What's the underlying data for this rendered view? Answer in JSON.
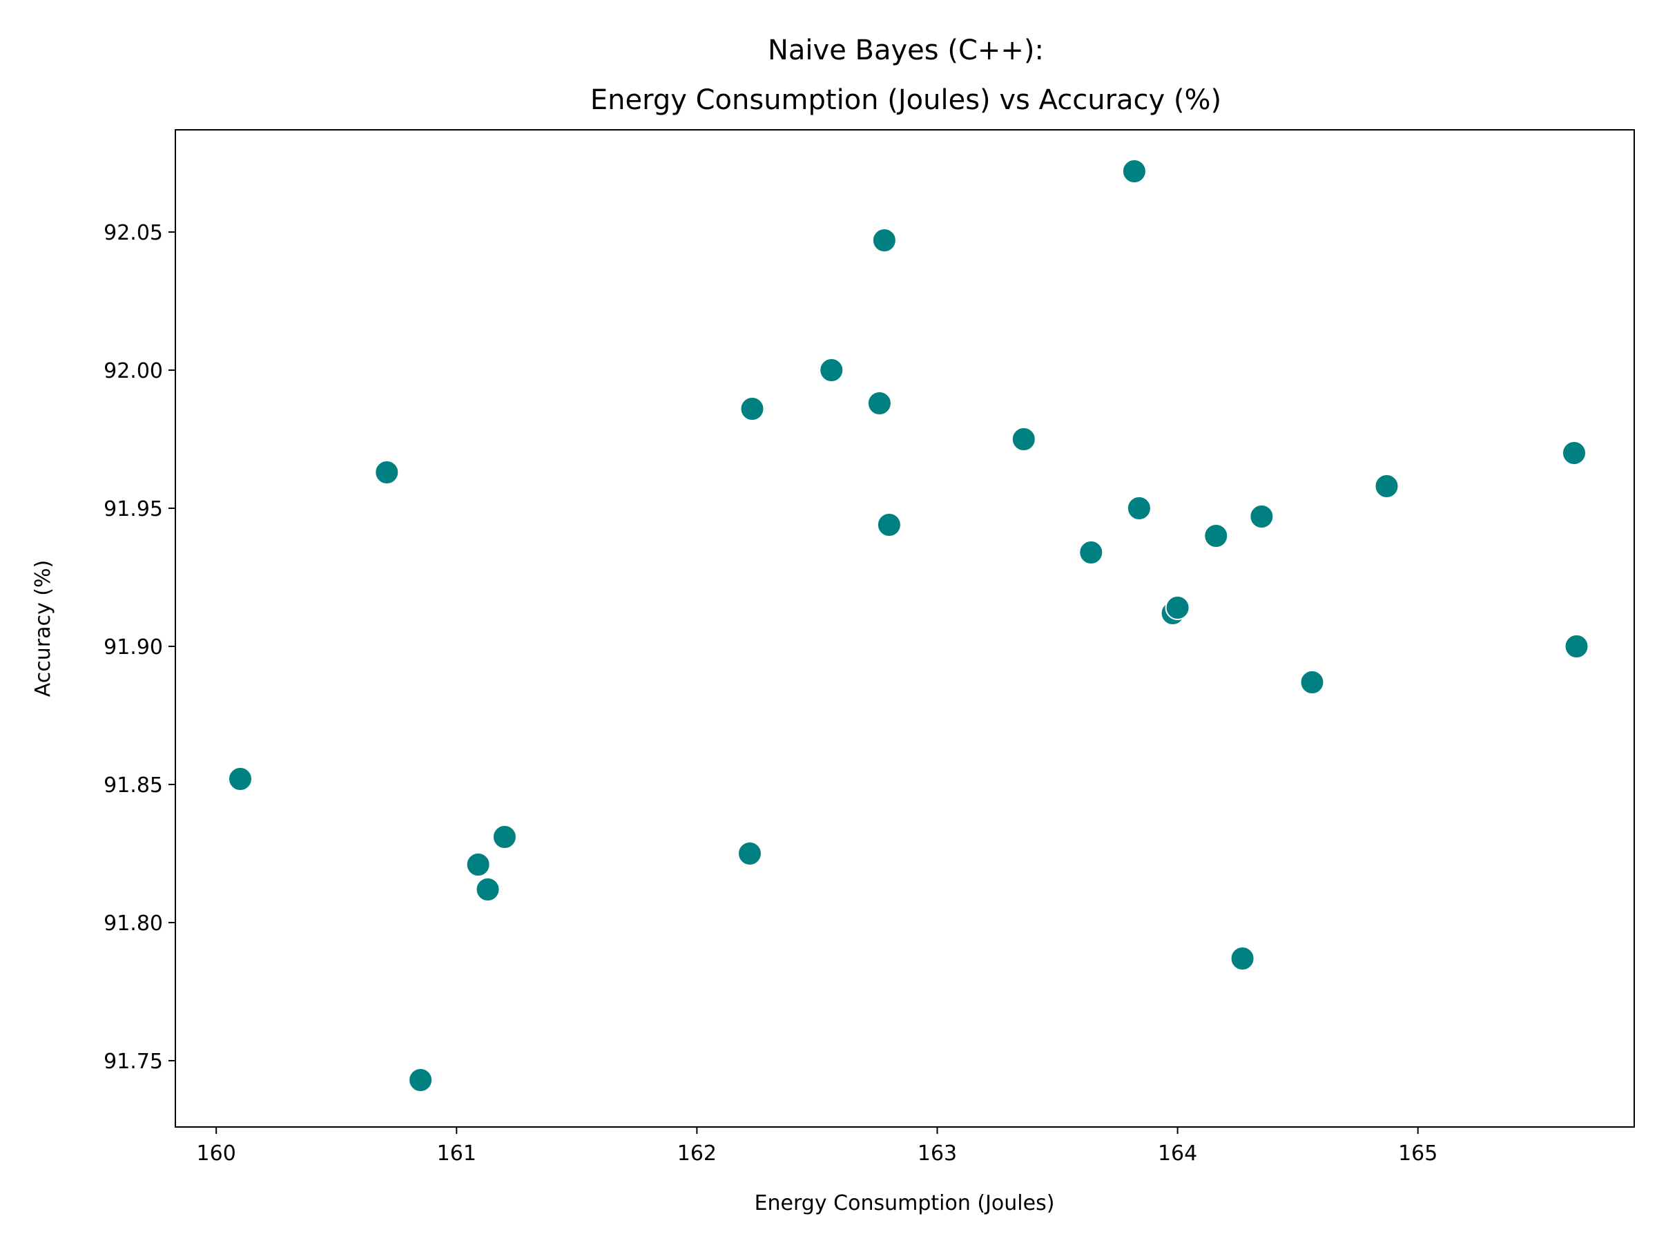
{
  "chart_data": {
    "type": "scatter",
    "title": [
      "Naive Bayes (C++):",
      "Energy Consumption (Joules) vs Accuracy (%)"
    ],
    "xlabel": "Energy Consumption (Joules)",
    "ylabel": "Accuracy (%)",
    "xlim": [
      159.83,
      165.9
    ],
    "ylim": [
      91.726,
      92.087
    ],
    "xticks": [
      160,
      161,
      162,
      163,
      164,
      165
    ],
    "xtick_labels": [
      "160",
      "161",
      "162",
      "163",
      "164",
      "165"
    ],
    "yticks": [
      91.75,
      91.8,
      91.85,
      91.9,
      91.95,
      92.0,
      92.05
    ],
    "ytick_labels": [
      "91.75",
      "91.80",
      "91.85",
      "91.90",
      "91.95",
      "92.00",
      "92.05"
    ],
    "grid": false,
    "marker_color": "#008080",
    "marker_edge_color": "#ffffff",
    "points": [
      {
        "x": 160.1,
        "y": 91.852
      },
      {
        "x": 160.71,
        "y": 91.963
      },
      {
        "x": 160.85,
        "y": 91.743
      },
      {
        "x": 161.09,
        "y": 91.821
      },
      {
        "x": 161.13,
        "y": 91.812
      },
      {
        "x": 161.2,
        "y": 91.831
      },
      {
        "x": 162.22,
        "y": 91.825
      },
      {
        "x": 162.23,
        "y": 91.986
      },
      {
        "x": 162.56,
        "y": 92.0
      },
      {
        "x": 162.76,
        "y": 91.988
      },
      {
        "x": 162.78,
        "y": 92.047
      },
      {
        "x": 162.8,
        "y": 91.944
      },
      {
        "x": 163.36,
        "y": 91.975
      },
      {
        "x": 163.64,
        "y": 91.934
      },
      {
        "x": 163.82,
        "y": 92.072
      },
      {
        "x": 163.84,
        "y": 91.95
      },
      {
        "x": 163.98,
        "y": 91.912
      },
      {
        "x": 164.0,
        "y": 91.914
      },
      {
        "x": 164.16,
        "y": 91.94
      },
      {
        "x": 164.27,
        "y": 91.787
      },
      {
        "x": 164.35,
        "y": 91.947
      },
      {
        "x": 164.56,
        "y": 91.887
      },
      {
        "x": 164.87,
        "y": 91.958
      },
      {
        "x": 165.65,
        "y": 91.97
      },
      {
        "x": 165.66,
        "y": 91.9
      }
    ]
  }
}
